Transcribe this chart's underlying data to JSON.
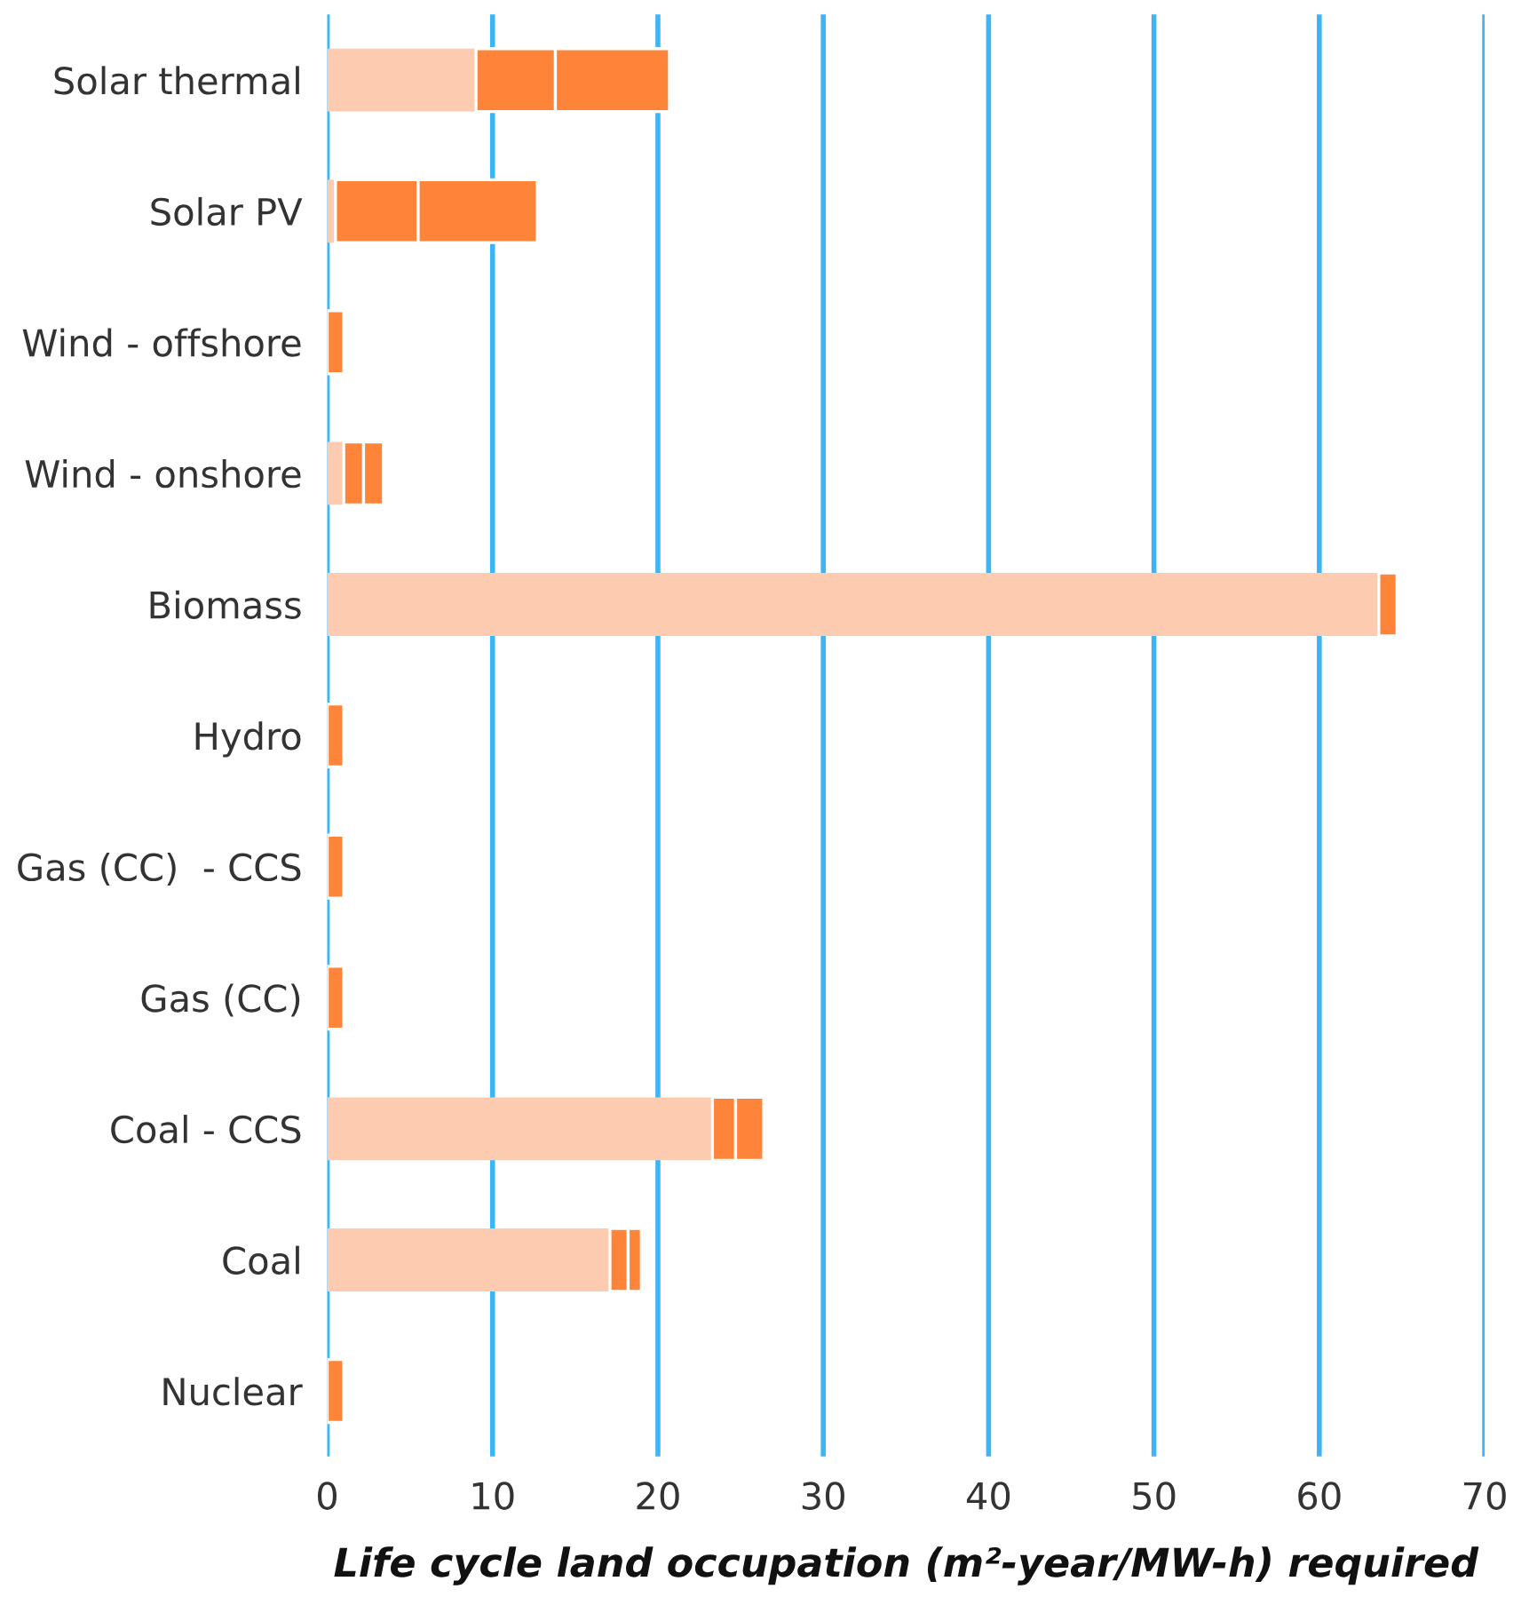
{
  "chart_data": {
    "type": "bar",
    "orientation": "horizontal",
    "stacked": true,
    "categories": [
      "Solar thermal",
      "Solar PV",
      "Wind - offshore",
      "Wind - onshore",
      "Biomass",
      "Hydro",
      "Gas (CC)  - CCS",
      "Gas (CC)",
      "Coal - CCS",
      "Coal",
      "Nuclear"
    ],
    "series": [
      {
        "color": "#fdcbb0",
        "values": [
          9.0,
          0.5,
          null,
          1.0,
          63.6,
          null,
          null,
          null,
          23.3,
          17.1,
          null
        ]
      },
      {
        "color": "#fe8439",
        "values": [
          4.8,
          5.0,
          1.0,
          1.2,
          1.1,
          1.0,
          1.0,
          1.0,
          1.4,
          1.1,
          1.0
        ]
      },
      {
        "color": "#fe8439",
        "values": [
          6.9,
          7.2,
          null,
          1.2,
          null,
          null,
          null,
          null,
          1.7,
          0.8,
          null
        ]
      }
    ],
    "xlabel": "Life cycle land occupation (m²-year/MW-h) required",
    "xlim": [
      0,
      70
    ],
    "xticks": [
      0,
      10,
      20,
      30,
      40,
      50,
      60,
      70
    ],
    "grid": "x",
    "legend": false
  }
}
